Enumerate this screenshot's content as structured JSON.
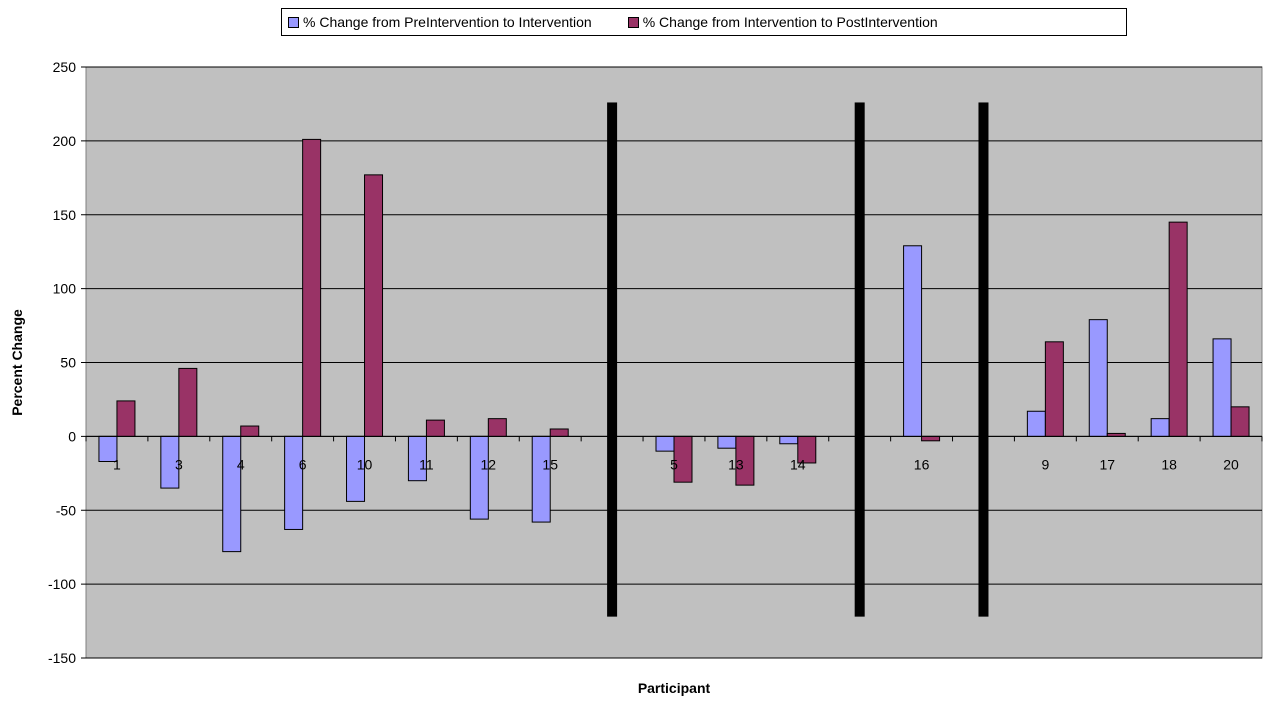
{
  "chart_data": {
    "type": "bar",
    "title": "",
    "xlabel": "Participant",
    "ylabel": "Percent Change",
    "ylim": [
      -150,
      250
    ],
    "yticks": [
      -150,
      -100,
      -50,
      0,
      50,
      100,
      150,
      200,
      250
    ],
    "grid": true,
    "legend_position": "top",
    "categories": [
      "1",
      "3",
      "4",
      "6",
      "10",
      "11",
      "12",
      "15",
      "",
      "5",
      "13",
      "14",
      "",
      "16",
      "",
      "9",
      "17",
      "18",
      "20"
    ],
    "separators_after_category": [
      7,
      11,
      13
    ],
    "series": [
      {
        "name": "% Change from PreIntervention to Intervention",
        "color": "#9999ff",
        "values": [
          -17,
          -35,
          -78,
          -63,
          -44,
          -30,
          -56,
          -58,
          null,
          -10,
          -8,
          -5,
          null,
          129,
          null,
          17,
          79,
          12,
          66
        ]
      },
      {
        "name": "% Change from Intervention to PostIntervention",
        "color": "#993366",
        "values": [
          24,
          46,
          7,
          201,
          177,
          11,
          12,
          5,
          null,
          -31,
          -33,
          -18,
          null,
          -3,
          null,
          64,
          2,
          145,
          20
        ]
      }
    ],
    "plot_background": "#c0c0c0",
    "separator_color": "#000000"
  }
}
